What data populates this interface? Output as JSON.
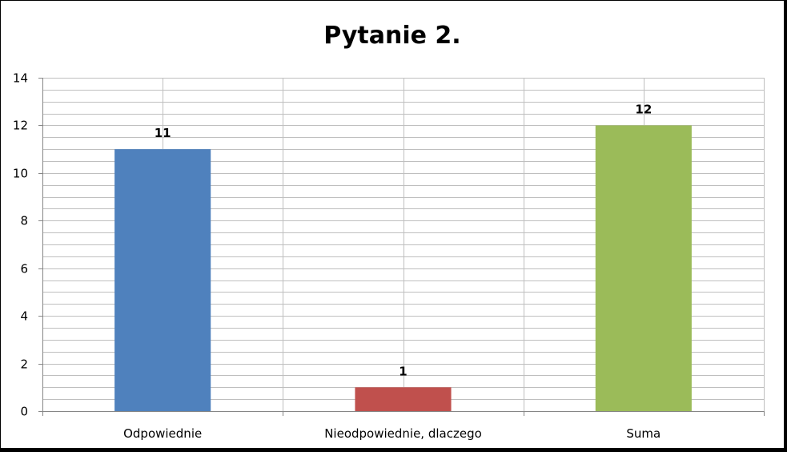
{
  "chart_data": {
    "type": "bar",
    "title": "Pytanie 2.",
    "categories": [
      "Odpowiednie",
      "Nieodpowiednie, dlaczego",
      "Suma"
    ],
    "values": [
      11,
      1,
      12
    ],
    "value_labels": [
      "11",
      "1",
      "12"
    ],
    "bar_colors": [
      "#4F81BD",
      "#C0504D",
      "#9BBB59"
    ],
    "ylim": [
      0,
      14
    ],
    "y_ticks": [
      0,
      2,
      4,
      6,
      8,
      10,
      12,
      14
    ],
    "y_tick_labels": [
      "0",
      "2",
      "4",
      "6",
      "8",
      "10",
      "12",
      "14"
    ],
    "y_minor_step": 0.5,
    "grid": true,
    "legend": "none",
    "xlabel": "",
    "ylabel": ""
  },
  "colors": {
    "background": "#FFFFFF",
    "frame": "#000000",
    "grid": "#BFBFBF",
    "axis": "#868686"
  }
}
